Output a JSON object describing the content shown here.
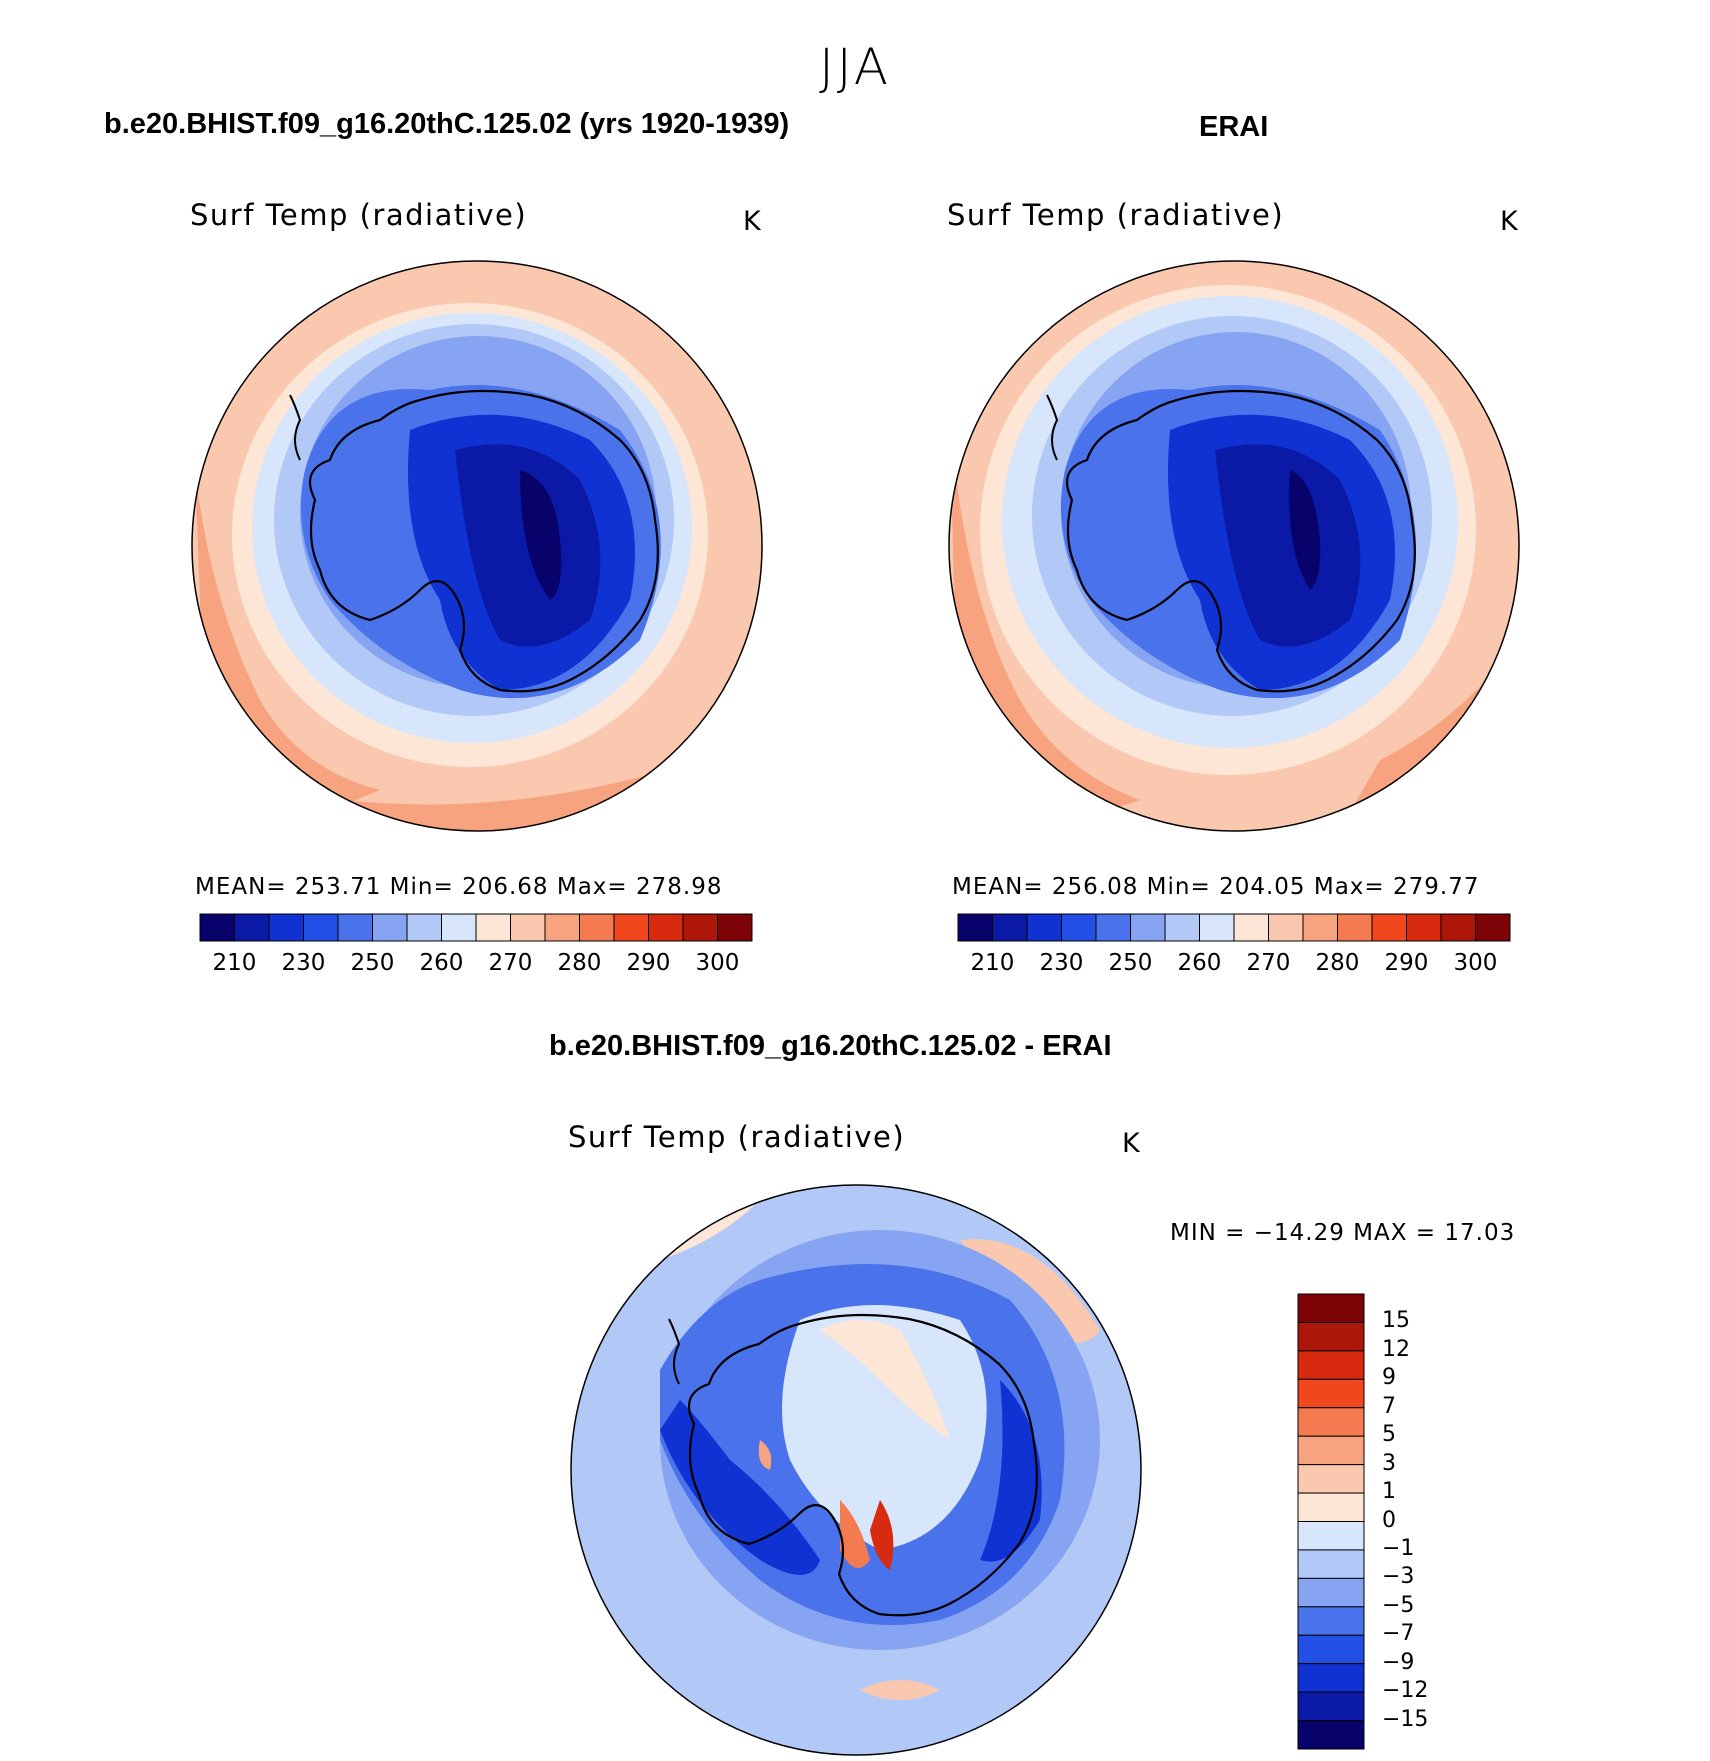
{
  "season": "JJA",
  "colors": {
    "abs_scale": [
      "#08036b",
      "#0a1aa6",
      "#1032d2",
      "#2250e6",
      "#4a72ea",
      "#86a4f1",
      "#b2c8f7",
      "#d7e6fb",
      "#fde6d6",
      "#f9c8ae",
      "#f7a37f",
      "#f47a4f",
      "#f0471f",
      "#d72a0e",
      "#ad1709",
      "#7e0306"
    ],
    "diff_scale": [
      "#08036b",
      "#0a1aa6",
      "#1032d2",
      "#2250e6",
      "#4a72ea",
      "#86a4f1",
      "#b2c8f7",
      "#d7e6fb",
      "#fde6d6",
      "#f9c8ae",
      "#f7a37f",
      "#f47a4f",
      "#f0471f",
      "#d72a0e",
      "#ad1709",
      "#7e0306"
    ],
    "coastline": "#000000"
  },
  "panels": {
    "model": {
      "title": "b.e20.BHIST.f09_g16.20thC.125.02 (yrs 1920-1939)",
      "field": "Surf Temp (radiative)",
      "units": "K",
      "stats": "MEAN=  253.71   Min=  206.68   Max=  278.98",
      "ticks": [
        "210",
        "230",
        "250",
        "260",
        "270",
        "280",
        "290",
        "300"
      ]
    },
    "obs": {
      "title": "ERAI",
      "field": "Surf Temp (radiative)",
      "units": "K",
      "stats": "MEAN=  256.08   Min=  204.05   Max=  279.77",
      "ticks": [
        "210",
        "230",
        "250",
        "260",
        "270",
        "280",
        "290",
        "300"
      ]
    },
    "diff": {
      "title": "b.e20.BHIST.f09_g16.20thC.125.02 - ERAI",
      "field": "Surf Temp (radiative)",
      "units": "K",
      "stats": "MIN = −14.29  MAX =   17.03",
      "ticks": [
        "15",
        "12",
        "9",
        "7",
        "5",
        "3",
        "1",
        "0",
        "−1",
        "−3",
        "−5",
        "−7",
        "−9",
        "−12",
        "−15"
      ]
    }
  }
}
